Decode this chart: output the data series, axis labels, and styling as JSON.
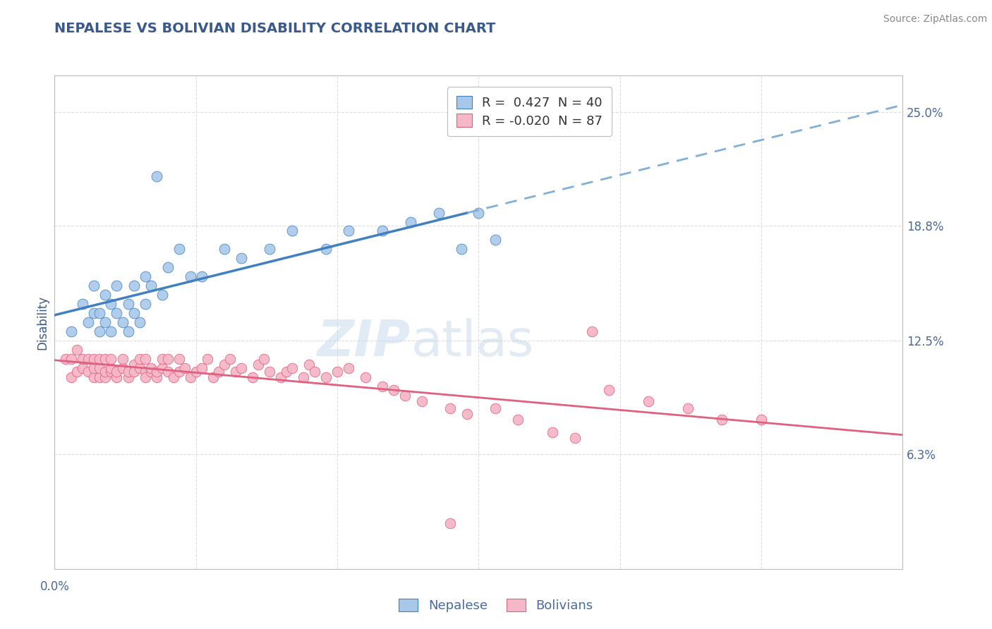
{
  "title": "NEPALESE VS BOLIVIAN DISABILITY CORRELATION CHART",
  "source": "Source: ZipAtlas.com",
  "ylabel": "Disability",
  "ytick_values": [
    0.063,
    0.125,
    0.188,
    0.25
  ],
  "ytick_labels": [
    "6.3%",
    "12.5%",
    "18.8%",
    "25.0%"
  ],
  "xmin": 0.0,
  "xmax": 0.15,
  "ymin": 0.0,
  "ymax": 0.27,
  "watermark": "ZIPatlas",
  "legend_entry1": "R =  0.427  N = 40",
  "legend_entry2": "R = -0.020  N = 87",
  "nepalese_color": "#A8C8EA",
  "bolivian_color": "#F5B8C8",
  "nepalese_line_color": "#4080C0",
  "bolivian_line_color": "#E06080",
  "dashed_line_color": "#80B0D8",
  "nepalese_x": [
    0.003,
    0.005,
    0.006,
    0.007,
    0.007,
    0.008,
    0.008,
    0.009,
    0.009,
    0.01,
    0.01,
    0.011,
    0.011,
    0.012,
    0.013,
    0.013,
    0.014,
    0.014,
    0.015,
    0.016,
    0.016,
    0.017,
    0.018,
    0.019,
    0.02,
    0.022,
    0.024,
    0.026,
    0.03,
    0.033,
    0.038,
    0.042,
    0.048,
    0.052,
    0.058,
    0.063,
    0.068,
    0.072,
    0.075,
    0.078
  ],
  "nepalese_y": [
    0.13,
    0.145,
    0.135,
    0.14,
    0.155,
    0.13,
    0.14,
    0.135,
    0.15,
    0.13,
    0.145,
    0.14,
    0.155,
    0.135,
    0.13,
    0.145,
    0.155,
    0.14,
    0.135,
    0.145,
    0.16,
    0.155,
    0.215,
    0.15,
    0.165,
    0.175,
    0.16,
    0.16,
    0.175,
    0.17,
    0.175,
    0.185,
    0.175,
    0.185,
    0.185,
    0.19,
    0.195,
    0.175,
    0.195,
    0.18
  ],
  "bolivian_x": [
    0.002,
    0.003,
    0.003,
    0.004,
    0.004,
    0.005,
    0.005,
    0.006,
    0.006,
    0.007,
    0.007,
    0.007,
    0.008,
    0.008,
    0.008,
    0.009,
    0.009,
    0.009,
    0.01,
    0.01,
    0.01,
    0.011,
    0.011,
    0.012,
    0.012,
    0.013,
    0.013,
    0.014,
    0.014,
    0.015,
    0.015,
    0.016,
    0.016,
    0.016,
    0.017,
    0.017,
    0.018,
    0.018,
    0.019,
    0.019,
    0.02,
    0.02,
    0.021,
    0.022,
    0.022,
    0.023,
    0.024,
    0.025,
    0.026,
    0.027,
    0.028,
    0.029,
    0.03,
    0.031,
    0.032,
    0.033,
    0.035,
    0.036,
    0.037,
    0.038,
    0.04,
    0.041,
    0.042,
    0.044,
    0.045,
    0.046,
    0.048,
    0.05,
    0.052,
    0.055,
    0.058,
    0.06,
    0.062,
    0.065,
    0.07,
    0.073,
    0.078,
    0.082,
    0.088,
    0.092,
    0.098,
    0.105,
    0.112,
    0.118,
    0.125,
    0.095,
    0.07
  ],
  "bolivian_y": [
    0.115,
    0.115,
    0.105,
    0.108,
    0.12,
    0.11,
    0.115,
    0.115,
    0.108,
    0.105,
    0.11,
    0.115,
    0.105,
    0.11,
    0.115,
    0.105,
    0.108,
    0.115,
    0.108,
    0.11,
    0.115,
    0.105,
    0.108,
    0.11,
    0.115,
    0.105,
    0.108,
    0.112,
    0.108,
    0.11,
    0.115,
    0.108,
    0.105,
    0.115,
    0.108,
    0.11,
    0.105,
    0.108,
    0.11,
    0.115,
    0.108,
    0.115,
    0.105,
    0.108,
    0.115,
    0.11,
    0.105,
    0.108,
    0.11,
    0.115,
    0.105,
    0.108,
    0.112,
    0.115,
    0.108,
    0.11,
    0.105,
    0.112,
    0.115,
    0.108,
    0.105,
    0.108,
    0.11,
    0.105,
    0.112,
    0.108,
    0.105,
    0.108,
    0.11,
    0.105,
    0.1,
    0.098,
    0.095,
    0.092,
    0.088,
    0.085,
    0.088,
    0.082,
    0.075,
    0.072,
    0.098,
    0.092,
    0.088,
    0.082,
    0.082,
    0.13,
    0.025
  ],
  "grid_color": "#DDDDDD",
  "background_color": "#FFFFFF",
  "title_color": "#3A5A8C",
  "axis_label_color": "#3A5A8C",
  "tick_label_color": "#4A6A9C"
}
